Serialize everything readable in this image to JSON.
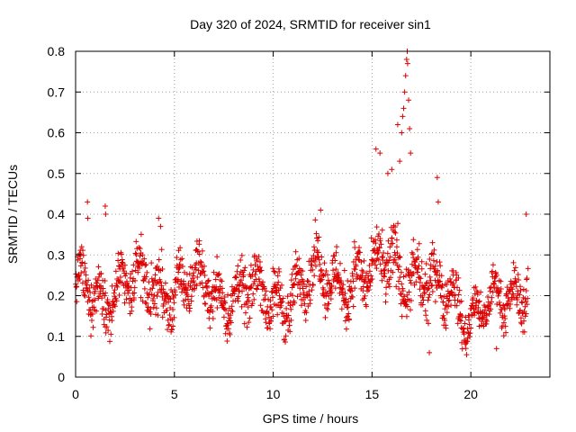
{
  "chart_data": {
    "type": "scatter",
    "title": "Day 320 of 2024, SRMTID for receiver sin1",
    "xlabel": "GPS time / hours",
    "ylabel": "SRMTID / TECUs",
    "xlim": [
      0,
      24
    ],
    "ylim": [
      0,
      0.8
    ],
    "x_ticks": [
      0,
      5,
      10,
      15,
      20
    ],
    "x_tick_labels": [
      "0",
      "5",
      "10",
      "15",
      "20"
    ],
    "y_ticks": [
      0,
      0.1,
      0.2,
      0.3,
      0.4,
      0.5,
      0.6,
      0.7,
      0.8
    ],
    "y_tick_labels": [
      "0",
      "0.1",
      "0.2",
      "0.3",
      "0.4",
      "0.5",
      "0.6",
      "0.7",
      "0.8"
    ],
    "grid": true,
    "marker": "+",
    "marker_color": "#dd0000",
    "series": [
      {
        "name": "sin1",
        "x_range": [
          0,
          22.9
        ],
        "envelope": [
          {
            "x": 0.0,
            "center": 0.2,
            "spread": 0.08
          },
          {
            "x": 2.0,
            "center": 0.22,
            "spread": 0.09
          },
          {
            "x": 4.0,
            "center": 0.22,
            "spread": 0.11
          },
          {
            "x": 6.0,
            "center": 0.22,
            "spread": 0.08
          },
          {
            "x": 8.0,
            "center": 0.21,
            "spread": 0.09
          },
          {
            "x": 10.0,
            "center": 0.19,
            "spread": 0.1
          },
          {
            "x": 12.0,
            "center": 0.24,
            "spread": 0.09
          },
          {
            "x": 14.0,
            "center": 0.25,
            "spread": 0.1
          },
          {
            "x": 15.0,
            "center": 0.23,
            "spread": 0.09
          },
          {
            "x": 16.0,
            "center": 0.3,
            "spread": 0.12
          },
          {
            "x": 17.0,
            "center": 0.25,
            "spread": 0.1
          },
          {
            "x": 18.0,
            "center": 0.2,
            "spread": 0.1
          },
          {
            "x": 19.0,
            "center": 0.22,
            "spread": 0.09
          },
          {
            "x": 20.0,
            "center": 0.15,
            "spread": 0.07
          },
          {
            "x": 21.0,
            "center": 0.16,
            "spread": 0.07
          },
          {
            "x": 22.0,
            "center": 0.2,
            "spread": 0.07
          },
          {
            "x": 22.9,
            "center": 0.25,
            "spread": 0.09
          }
        ],
        "notable_points": [
          {
            "x": 0.6,
            "y": 0.43
          },
          {
            "x": 0.62,
            "y": 0.39
          },
          {
            "x": 1.5,
            "y": 0.42
          },
          {
            "x": 1.52,
            "y": 0.4
          },
          {
            "x": 4.2,
            "y": 0.39
          },
          {
            "x": 4.3,
            "y": 0.37
          },
          {
            "x": 12.4,
            "y": 0.41
          },
          {
            "x": 15.2,
            "y": 0.56
          },
          {
            "x": 15.4,
            "y": 0.55
          },
          {
            "x": 15.8,
            "y": 0.5
          },
          {
            "x": 16.0,
            "y": 0.51
          },
          {
            "x": 16.3,
            "y": 0.62
          },
          {
            "x": 16.4,
            "y": 0.53
          },
          {
            "x": 16.5,
            "y": 0.6
          },
          {
            "x": 16.55,
            "y": 0.64
          },
          {
            "x": 16.6,
            "y": 0.66
          },
          {
            "x": 16.65,
            "y": 0.7
          },
          {
            "x": 16.7,
            "y": 0.74
          },
          {
            "x": 16.75,
            "y": 0.78
          },
          {
            "x": 16.78,
            "y": 0.8
          },
          {
            "x": 16.8,
            "y": 0.77
          },
          {
            "x": 16.85,
            "y": 0.68
          },
          {
            "x": 16.9,
            "y": 0.61
          },
          {
            "x": 16.95,
            "y": 0.55
          },
          {
            "x": 18.3,
            "y": 0.49
          },
          {
            "x": 18.35,
            "y": 0.43
          },
          {
            "x": 17.9,
            "y": 0.06
          },
          {
            "x": 21.3,
            "y": 0.07
          },
          {
            "x": 22.8,
            "y": 0.4
          }
        ],
        "point_count": 1500
      }
    ]
  }
}
